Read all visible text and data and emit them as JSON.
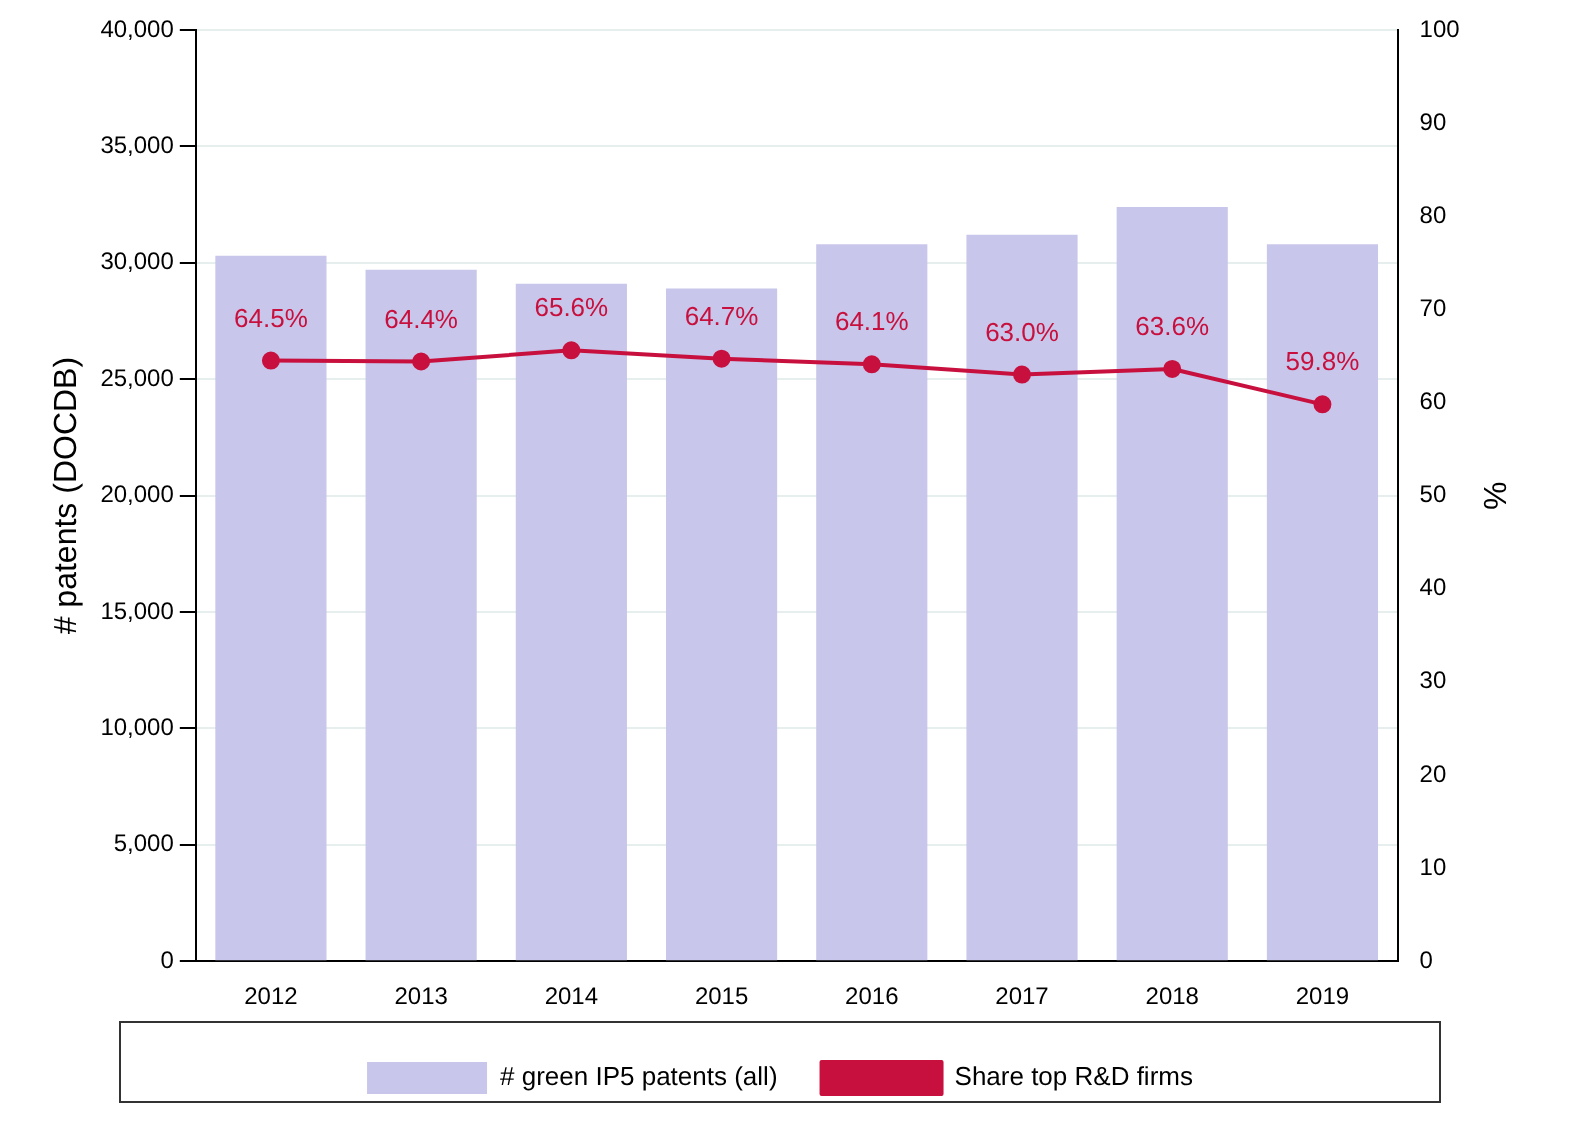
{
  "chart_data": {
    "type": "bar",
    "categories": [
      "2012",
      "2013",
      "2014",
      "2015",
      "2016",
      "2017",
      "2018",
      "2019"
    ],
    "ylabel": "# patents (DOCDB)",
    "y2label": "%",
    "ylim": [
      0,
      40000
    ],
    "yticks": [
      {
        "value": 0,
        "label": "0"
      },
      {
        "value": 5000,
        "label": "5,000"
      },
      {
        "value": 10000,
        "label": "10,000"
      },
      {
        "value": 15000,
        "label": "15,000"
      },
      {
        "value": 20000,
        "label": "20,000"
      },
      {
        "value": 25000,
        "label": "25,000"
      },
      {
        "value": 30000,
        "label": "30,000"
      },
      {
        "value": 35000,
        "label": "35,000"
      },
      {
        "value": 40000,
        "label": "40,000"
      }
    ],
    "y2lim": [
      0,
      100
    ],
    "y2ticks": [
      0,
      10,
      20,
      30,
      40,
      50,
      60,
      70,
      80,
      90,
      100
    ],
    "grid": "y",
    "legend": "bottom",
    "series": [
      {
        "name": "# green IP5 patents (all)",
        "type": "bar",
        "color": "#c8c6ea",
        "values": [
          30300,
          29700,
          29100,
          28900,
          30800,
          31200,
          32400,
          30800
        ]
      },
      {
        "name": "Share top R&D firms",
        "type": "line",
        "axis": "y2",
        "color": "#c8103e",
        "marker": "circle",
        "values": [
          64.5,
          64.4,
          65.6,
          64.7,
          64.1,
          63.0,
          63.6,
          59.8
        ],
        "value_labels": [
          "64.5%",
          "64.4%",
          "65.6%",
          "64.7%",
          "64.1%",
          "63.0%",
          "63.6%",
          "59.8%"
        ]
      }
    ]
  }
}
